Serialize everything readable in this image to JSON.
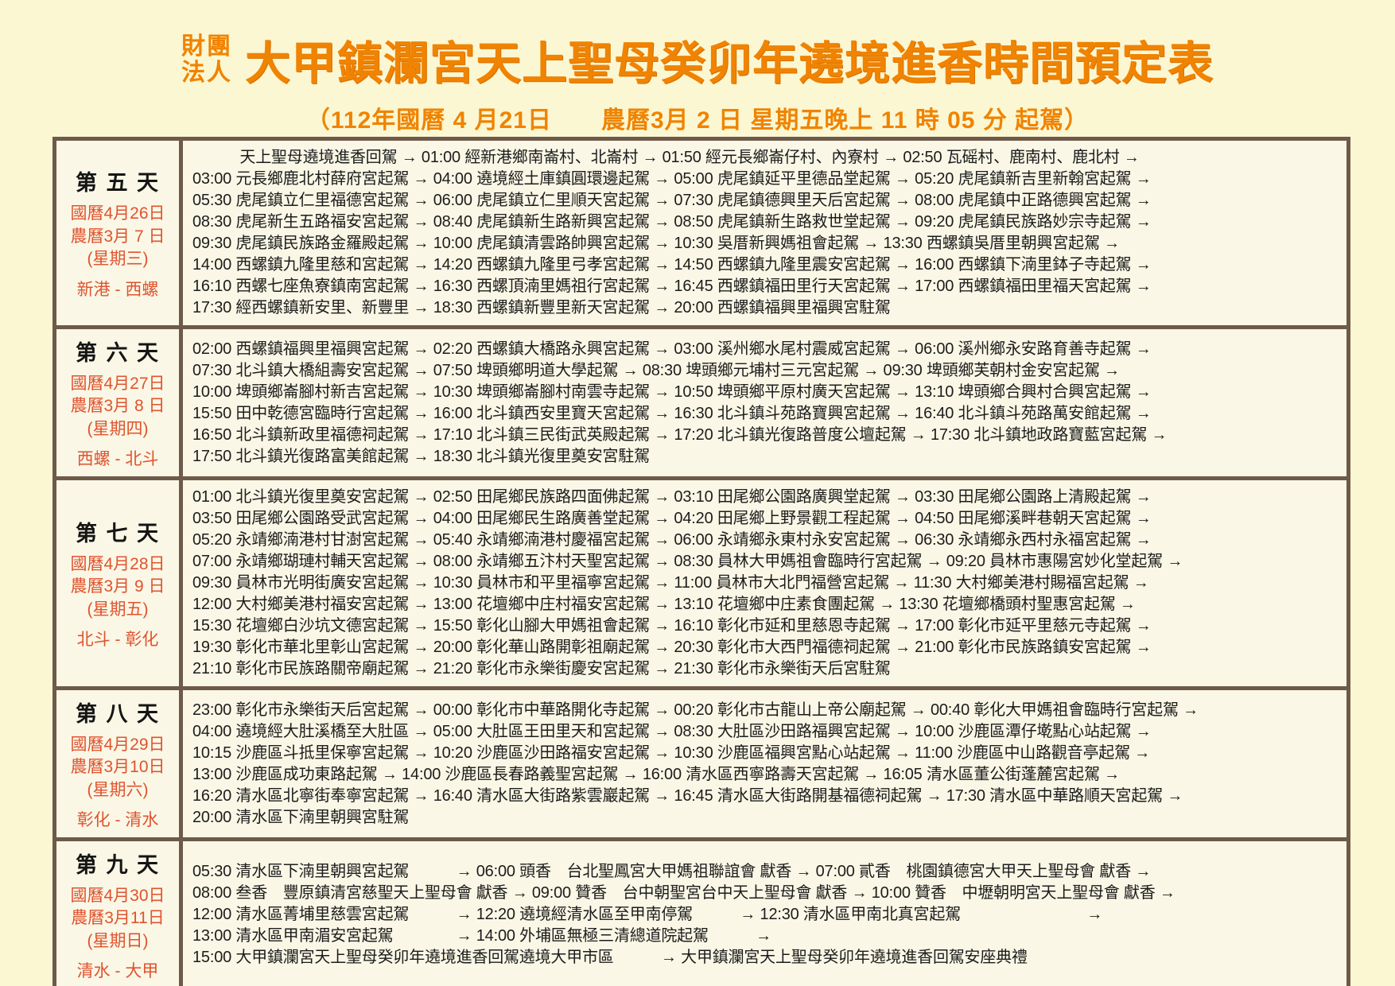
{
  "header": {
    "org_line1": "財團",
    "org_line2": "法人",
    "title": "大甲鎮瀾宮天上聖母癸卯年遶境進香時間預定表",
    "subtitle": "（112年國曆 4 月21日　　農曆3月 2 日 星期五晚上 11 時 05 分 起駕）"
  },
  "colors": {
    "accent_orange": "#F08300",
    "date_red": "#E0532F",
    "border_brown": "#6E5A4A",
    "page_background": "#FBF7D2",
    "table_background": "#FAF7E6",
    "text_black": "#1C1C1C"
  },
  "days": [
    {
      "name": "第 五 天",
      "solar": "國曆4月26日",
      "lunar": "農曆3月 7 日",
      "weekday": "(星期三)",
      "route": "新港 - 西螺",
      "lines": [
        "　　　天上聖母遶境進香回駕 → 01:00 經新港鄉南崙村、北崙村 → 01:50 經元長鄉崙仔村、內寮村 → 02:50 瓦磘村、鹿南村、鹿北村 →",
        "03:00 元長鄉鹿北村薛府宮起駕 → 04:00 遶境經土庫鎮圓環邊起駕 → 05:00 虎尾鎮延平里德品堂起駕 → 05:20 虎尾鎮新吉里新翰宮起駕 →",
        "05:30 虎尾鎮立仁里福德宮起駕 → 06:00 虎尾鎮立仁里順天宮起駕 → 07:30 虎尾鎮德興里天后宮起駕 → 08:00 虎尾鎮中正路德興宮起駕 →",
        "08:30 虎尾新生五路福安宮起駕 → 08:40 虎尾鎮新生路新興宮起駕 → 08:50 虎尾鎮新生路救世堂起駕 → 09:20 虎尾鎮民族路妙宗寺起駕 →",
        "09:30 虎尾鎮民族路金羅殿起駕 → 10:00 虎尾鎮清雲路帥興宮起駕 → 10:30 吳厝新興媽祖會起駕 → 13:30 西螺鎮吳厝里朝興宮起駕 →",
        "14:00 西螺鎮九隆里慈和宮起駕 → 14:20 西螺鎮九隆里弓孝宮起駕 → 14:50 西螺鎮九隆里震安宮起駕 → 16:00 西螺鎮下湳里鉢子寺起駕 →",
        "16:10 西螺七座魚寮鎮南宮起駕 → 16:30 西螺頂湳里媽祖行宮起駕 → 16:45 西螺鎮福田里行天宮起駕 → 17:00 西螺鎮福田里福天宮起駕 →",
        "17:30 經西螺鎮新安里、新豐里 → 18:30 西螺鎮新豐里新天宮起駕 → 20:00 西螺鎮福興里福興宮駐駕"
      ]
    },
    {
      "name": "第 六 天",
      "solar": "國曆4月27日",
      "lunar": "農曆3月 8 日",
      "weekday": "(星期四)",
      "route": "西螺 - 北斗",
      "lines": [
        "02:00 西螺鎮福興里福興宮起駕 → 02:20 西螺鎮大橋路永興宮起駕 → 03:00 溪州鄉水尾村震威宮起駕 → 06:00 溪州鄉永安路育善寺起駕 →",
        "07:30 北斗鎮大橋組壽安宮起駕 → 07:50 埤頭鄉明道大學起駕 → 08:30 埤頭鄉元埔村三元宮起駕 → 09:30 埤頭鄉芙朝村金安宮起駕 →",
        "10:00 埤頭鄉崙腳村新吉宮起駕 → 10:30 埤頭鄉崙腳村南雲寺起駕 → 10:50 埤頭鄉平原村廣天宮起駕 → 13:10 埤頭鄉合興村合興宮起駕 →",
        "15:50 田中乾德宮臨時行宮起駕 → 16:00 北斗鎮西安里寶天宮起駕 → 16:30 北斗鎮斗苑路寶興宮起駕 → 16:40 北斗鎮斗苑路萬安館起駕 →",
        "16:50 北斗鎮新政里福德祠起駕 → 17:10 北斗鎮三民街武英殿起駕 → 17:20 北斗鎮光復路普度公壇起駕 → 17:30 北斗鎮地政路寶藍宮起駕 →",
        "17:50 北斗鎮光復路富美館起駕 → 18:30 北斗鎮光復里奠安宮駐駕"
      ]
    },
    {
      "name": "第 七 天",
      "solar": "國曆4月28日",
      "lunar": "農曆3月 9 日",
      "weekday": "(星期五)",
      "route": "北斗 - 彰化",
      "lines": [
        "01:00 北斗鎮光復里奠安宮起駕 → 02:50 田尾鄉民族路四面佛起駕 → 03:10 田尾鄉公園路廣興堂起駕 → 03:30 田尾鄉公園路上清殿起駕 →",
        "03:50 田尾鄉公園路受武宮起駕 → 04:00 田尾鄉民生路廣善堂起駕 → 04:20 田尾鄉上野景觀工程起駕 → 04:50 田尾鄉溪畔巷朝天宮起駕 →",
        "05:20 永靖鄉湳港村甘澍宮起駕 → 05:40 永靖鄉湳港村慶福宮起駕 → 06:00 永靖鄉永東村永安宮起駕 → 06:30 永靖鄉永西村永福宮起駕 →",
        "07:00 永靖鄉瑚璉村輔天宮起駕 → 08:00 永靖鄉五汴村天聖宮起駕 → 08:30 員林大甲媽祖會臨時行宮起駕 → 09:20 員林市惠陽宮妙化堂起駕 →",
        "09:30 員林市光明街廣安宮起駕 → 10:30 員林市和平里福寧宮起駕 → 11:00 員林市大北門福營宮起駕 → 11:30 大村鄉美港村賜福宮起駕 →",
        "12:00 大村鄉美港村福安宮起駕 → 13:00 花壇鄉中庄村福安宮起駕 → 13:10 花壇鄉中庄素食團起駕 → 13:30 花壇鄉橋頭村聖惠宮起駕 →",
        "15:30 花壇鄉白沙坑文德宮起駕 → 15:50 彰化山腳大甲媽祖會起駕 → 16:10 彰化市延和里慈恩寺起駕 → 17:00 彰化市延平里慈元寺起駕 →",
        "19:30 彰化市華北里彰山宮起駕 → 20:00 彰化華山路開彰祖廟起駕 → 20:30 彰化市大西門福德祠起駕 → 21:00 彰化市民族路鎮安宮起駕 →",
        "21:10 彰化市民族路關帝廟起駕 → 21:20 彰化市永樂街慶安宮起駕 → 21:30 彰化市永樂街天后宮駐駕"
      ]
    },
    {
      "name": "第 八 天",
      "solar": "國曆4月29日",
      "lunar": "農曆3月10日",
      "weekday": "(星期六)",
      "route": "彰化 - 清水",
      "lines": [
        "23:00 彰化市永樂街天后宮起駕 → 00:00 彰化市中華路開化寺起駕 → 00:20 彰化市古龍山上帝公廟起駕 → 00:40 彰化大甲媽祖會臨時行宮起駕 →",
        "04:00 遶境經大肚溪橋至大肚區 → 05:00 大肚區王田里天和宮起駕 → 08:30 大肚區沙田路福興宮起駕 → 10:00 沙鹿區潭仔墘點心站起駕 →",
        "10:15 沙鹿區斗抵里保寧宮起駕 → 10:20 沙鹿區沙田路福安宮起駕 → 10:30 沙鹿區福興宮點心站起駕 → 11:00 沙鹿區中山路觀音亭起駕 →",
        "13:00 沙鹿區成功東路起駕 → 14:00 沙鹿區長春路義聖宮起駕 → 16:00 清水區西寧路壽天宮起駕 → 16:05 清水區董公街蓬麓宮起駕 →",
        "16:20 清水區北寧街奉寧宮起駕 → 16:40 清水區大街路紫雲巖起駕 → 16:45 清水區大街路開基福德祠起駕 → 17:30 清水區中華路順天宮起駕 →",
        "20:00 清水區下湳里朝興宮駐駕"
      ]
    },
    {
      "name": "第 九 天",
      "solar": "國曆4月30日",
      "lunar": "農曆3月11日",
      "weekday": "(星期日)",
      "route": "清水 - 大甲",
      "lines": [
        "05:30 清水區下湳里朝興宮起駕　　　→ 06:00 頭香　台北聖鳳宮大甲媽祖聯誼會 獻香 → 07:00 貳香　桃園鎮德宮大甲天上聖母會 獻香 →",
        "08:00 叁香　豐原鎮清宮慈聖天上聖母會 獻香 → 09:00 贊香　台中朝聖宮台中天上聖母會 獻香 → 10:00 贊香　中壢朝明宮天上聖母會 獻香 →",
        "12:00 清水區菁埔里慈雲宮起駕　　　→ 12:20 遶境經清水區至甲南停駕　　　→ 12:30 清水區甲南北真宮起駕　　　　　　　　→",
        "13:00 清水區甲南湄安宮起駕　　　　→ 14:00 外埔區無極三清總道院起駕　　　→",
        "15:00 大甲鎮瀾宮天上聖母癸卯年遶境進香回駕遶境大甲市區　　　→ 大甲鎮瀾宮天上聖母癸卯年遶境進香回駕安座典禮"
      ]
    }
  ]
}
